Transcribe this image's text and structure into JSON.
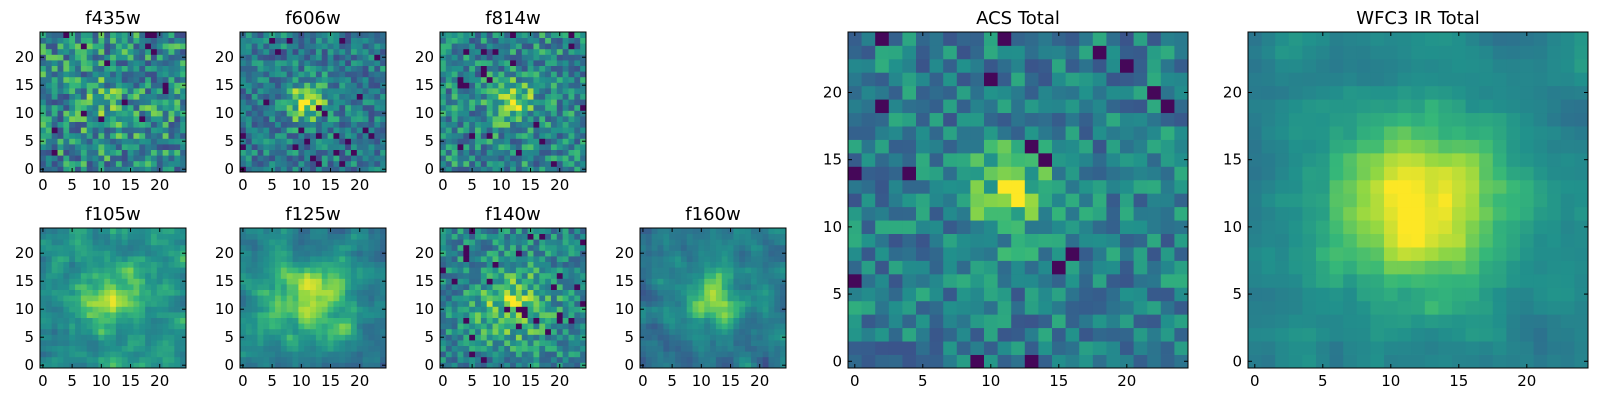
{
  "figure": {
    "colormap": "viridis"
  },
  "chart_data": [
    {
      "type": "heatmap",
      "title": "f435w",
      "colormap": "viridis",
      "xlim": [
        0,
        24
      ],
      "ylim": [
        0,
        24
      ],
      "grid": false,
      "x_ticks": [
        "0",
        "5",
        "10",
        "15",
        "20"
      ],
      "y_ticks": [
        "0",
        "5",
        "10",
        "15",
        "20"
      ],
      "size": 25,
      "peak": [
        12,
        12
      ],
      "peak_strength": 0.12,
      "peak_width": 4,
      "background": 0.55,
      "noise": 0.28,
      "seed": 11
    },
    {
      "type": "heatmap",
      "title": "f606w",
      "colormap": "viridis",
      "xlim": [
        0,
        24
      ],
      "ylim": [
        0,
        24
      ],
      "grid": false,
      "x_ticks": [
        "0",
        "5",
        "10",
        "15",
        "20"
      ],
      "y_ticks": [
        "0",
        "5",
        "10",
        "15",
        "20"
      ],
      "size": 25,
      "peak": [
        11,
        12
      ],
      "peak_strength": 0.45,
      "peak_width": 2.5,
      "background": 0.5,
      "noise": 0.22,
      "seed": 23
    },
    {
      "type": "heatmap",
      "title": "f814w",
      "colormap": "viridis",
      "xlim": [
        0,
        24
      ],
      "ylim": [
        0,
        24
      ],
      "grid": false,
      "x_ticks": [
        "0",
        "5",
        "10",
        "15",
        "20"
      ],
      "y_ticks": [
        "0",
        "5",
        "10",
        "15",
        "20"
      ],
      "size": 25,
      "peak": [
        12,
        12
      ],
      "peak_strength": 0.35,
      "peak_width": 2.5,
      "background": 0.55,
      "noise": 0.24,
      "seed": 37
    },
    {
      "type": "heatmap",
      "title": "f105w",
      "colormap": "viridis",
      "xlim": [
        0,
        24
      ],
      "ylim": [
        0,
        24
      ],
      "grid": false,
      "x_ticks": [
        "0",
        "5",
        "10",
        "15",
        "20"
      ],
      "y_ticks": [
        "0",
        "5",
        "10",
        "15",
        "20"
      ],
      "size": 25,
      "peak": [
        12,
        12
      ],
      "peak_strength": 0.3,
      "peak_width": 4,
      "background": 0.6,
      "noise": 0.18,
      "seed": 41
    },
    {
      "type": "heatmap",
      "title": "f125w",
      "colormap": "viridis",
      "xlim": [
        0,
        24
      ],
      "ylim": [
        0,
        24
      ],
      "grid": false,
      "x_ticks": [
        "0",
        "5",
        "10",
        "15",
        "20"
      ],
      "y_ticks": [
        "0",
        "5",
        "10",
        "15",
        "20"
      ],
      "size": 25,
      "peak": [
        12,
        12
      ],
      "peak_strength": 0.35,
      "peak_width": 5,
      "background": 0.55,
      "noise": 0.17,
      "seed": 53
    },
    {
      "type": "heatmap",
      "title": "f140w",
      "colormap": "viridis",
      "xlim": [
        0,
        24
      ],
      "ylim": [
        0,
        24
      ],
      "grid": false,
      "x_ticks": [
        "0",
        "5",
        "10",
        "15",
        "20"
      ],
      "y_ticks": [
        "0",
        "5",
        "10",
        "15",
        "20"
      ],
      "size": 25,
      "peak": [
        12,
        11
      ],
      "peak_strength": 0.3,
      "peak_width": 4.5,
      "background": 0.55,
      "noise": 0.2,
      "seed": 67
    },
    {
      "type": "heatmap",
      "title": "f160w",
      "colormap": "viridis",
      "xlim": [
        0,
        24
      ],
      "ylim": [
        0,
        24
      ],
      "grid": false,
      "x_ticks": [
        "0",
        "5",
        "10",
        "15",
        "20"
      ],
      "y_ticks": [
        "0",
        "5",
        "10",
        "15",
        "20"
      ],
      "size": 25,
      "peak": [
        12,
        12
      ],
      "peak_strength": 0.38,
      "peak_width": 4,
      "background": 0.5,
      "noise": 0.18,
      "seed": 79
    },
    {
      "type": "heatmap",
      "title": "ACS Total",
      "colormap": "viridis",
      "xlim": [
        0,
        24
      ],
      "ylim": [
        0,
        24
      ],
      "grid": false,
      "x_ticks": [
        "0",
        "5",
        "10",
        "15",
        "20"
      ],
      "y_ticks": [
        "0",
        "5",
        "10",
        "15",
        "20"
      ],
      "size": 25,
      "peak": [
        11.5,
        12.5
      ],
      "peak_strength": 0.38,
      "peak_width": 2.2,
      "background": 0.52,
      "noise": 0.2,
      "seed": 97
    },
    {
      "type": "heatmap",
      "title": "WFC3 IR Total",
      "colormap": "viridis",
      "xlim": [
        0,
        24
      ],
      "ylim": [
        0,
        24
      ],
      "grid": false,
      "x_ticks": [
        "0",
        "5",
        "10",
        "15",
        "20"
      ],
      "y_ticks": [
        "0",
        "5",
        "10",
        "15",
        "20"
      ],
      "size": 25,
      "peak": [
        12,
        11.5
      ],
      "peak_strength": 0.45,
      "peak_width": 5,
      "background": 0.55,
      "noise": 0.1,
      "seed": 113
    }
  ]
}
